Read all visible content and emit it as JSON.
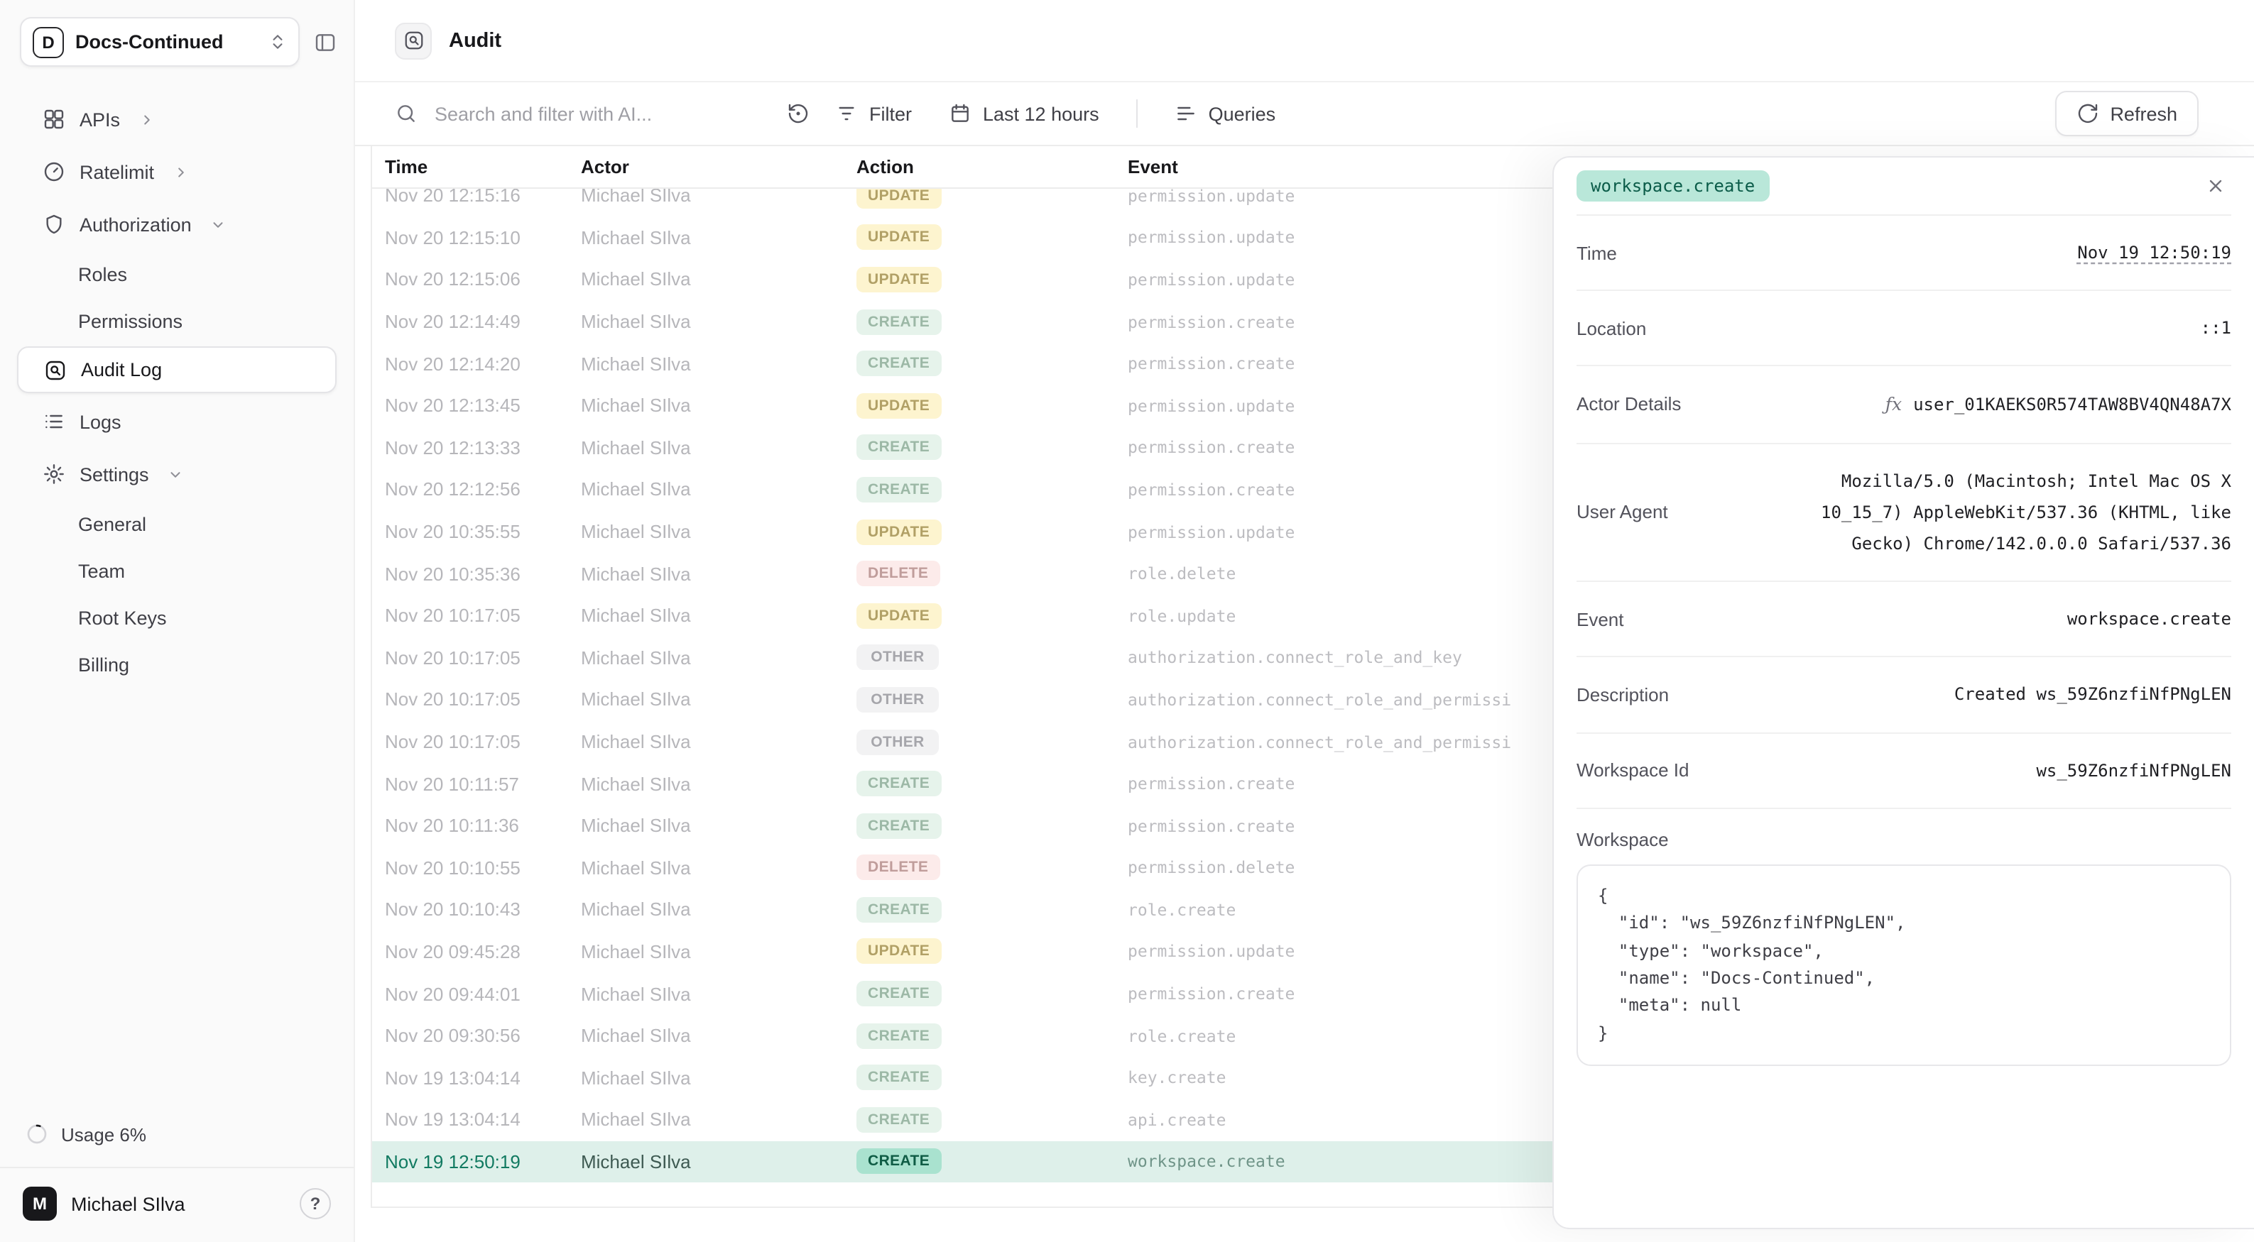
{
  "colors": {
    "accent_teal": "#117a61",
    "selected_row_bg": "#def0ea",
    "event_badge_bg": "#b9e7d9",
    "badge_update_bg": "#fdf4cf",
    "badge_create_bg": "#e6f3eb",
    "badge_delete_bg": "#fcebea",
    "badge_other_bg": "#f2f2f3",
    "sidebar_bg": "#fafafa"
  },
  "sidebar": {
    "workspace": {
      "name": "Docs-Continued",
      "logo_letter": "D"
    },
    "nav": [
      {
        "label": "APIs",
        "icon": "api",
        "chevron": "right"
      },
      {
        "label": "Ratelimit",
        "icon": "gauge",
        "chevron": "right"
      },
      {
        "label": "Authorization",
        "icon": "shield",
        "chevron": "down",
        "children": [
          "Roles",
          "Permissions"
        ]
      },
      {
        "label": "Audit Log",
        "icon": "audit",
        "active": true
      },
      {
        "label": "Logs",
        "icon": "logs"
      },
      {
        "label": "Settings",
        "icon": "gear",
        "chevron": "down",
        "children": [
          "General",
          "Team",
          "Root Keys",
          "Billing"
        ]
      }
    ],
    "usage_label": "Usage 6%",
    "user": {
      "name": "Michael SIlva",
      "avatar_letter": "M"
    },
    "help_label": "?"
  },
  "header": {
    "title": "Audit"
  },
  "toolbar": {
    "search_placeholder": "Search and filter with AI...",
    "filter_label": "Filter",
    "time_range_label": "Last 12 hours",
    "queries_label": "Queries",
    "refresh_label": "Refresh"
  },
  "table": {
    "columns": [
      "Time",
      "Actor",
      "Action",
      "Event"
    ],
    "rows": [
      {
        "time": "Nov 20 12:15:16",
        "actor": "Michael SIlva",
        "action": "UPDATE",
        "event": "permission.update"
      },
      {
        "time": "Nov 20 12:15:10",
        "actor": "Michael SIlva",
        "action": "UPDATE",
        "event": "permission.update"
      },
      {
        "time": "Nov 20 12:15:06",
        "actor": "Michael SIlva",
        "action": "UPDATE",
        "event": "permission.update"
      },
      {
        "time": "Nov 20 12:14:49",
        "actor": "Michael SIlva",
        "action": "CREATE",
        "event": "permission.create"
      },
      {
        "time": "Nov 20 12:14:20",
        "actor": "Michael SIlva",
        "action": "CREATE",
        "event": "permission.create"
      },
      {
        "time": "Nov 20 12:13:45",
        "actor": "Michael SIlva",
        "action": "UPDATE",
        "event": "permission.update"
      },
      {
        "time": "Nov 20 12:13:33",
        "actor": "Michael SIlva",
        "action": "CREATE",
        "event": "permission.create"
      },
      {
        "time": "Nov 20 12:12:56",
        "actor": "Michael SIlva",
        "action": "CREATE",
        "event": "permission.create"
      },
      {
        "time": "Nov 20 10:35:55",
        "actor": "Michael SIlva",
        "action": "UPDATE",
        "event": "permission.update"
      },
      {
        "time": "Nov 20 10:35:36",
        "actor": "Michael SIlva",
        "action": "DELETE",
        "event": "role.delete"
      },
      {
        "time": "Nov 20 10:17:05",
        "actor": "Michael SIlva",
        "action": "UPDATE",
        "event": "role.update"
      },
      {
        "time": "Nov 20 10:17:05",
        "actor": "Michael SIlva",
        "action": "OTHER",
        "event": "authorization.connect_role_and_key"
      },
      {
        "time": "Nov 20 10:17:05",
        "actor": "Michael SIlva",
        "action": "OTHER",
        "event": "authorization.connect_role_and_permissi"
      },
      {
        "time": "Nov 20 10:17:05",
        "actor": "Michael SIlva",
        "action": "OTHER",
        "event": "authorization.connect_role_and_permissi"
      },
      {
        "time": "Nov 20 10:11:57",
        "actor": "Michael SIlva",
        "action": "CREATE",
        "event": "permission.create"
      },
      {
        "time": "Nov 20 10:11:36",
        "actor": "Michael SIlva",
        "action": "CREATE",
        "event": "permission.create"
      },
      {
        "time": "Nov 20 10:10:55",
        "actor": "Michael SIlva",
        "action": "DELETE",
        "event": "permission.delete"
      },
      {
        "time": "Nov 20 10:10:43",
        "actor": "Michael SIlva",
        "action": "CREATE",
        "event": "role.create"
      },
      {
        "time": "Nov 20 09:45:28",
        "actor": "Michael SIlva",
        "action": "UPDATE",
        "event": "permission.update"
      },
      {
        "time": "Nov 20 09:44:01",
        "actor": "Michael SIlva",
        "action": "CREATE",
        "event": "permission.create"
      },
      {
        "time": "Nov 20 09:30:56",
        "actor": "Michael SIlva",
        "action": "CREATE",
        "event": "role.create"
      },
      {
        "time": "Nov 19 13:04:14",
        "actor": "Michael SIlva",
        "action": "CREATE",
        "event": "key.create"
      },
      {
        "time": "Nov 19 13:04:14",
        "actor": "Michael SIlva",
        "action": "CREATE",
        "event": "api.create"
      },
      {
        "time": "Nov 19 12:50:19",
        "actor": "Michael SIlva",
        "action": "CREATE",
        "event": "workspace.create",
        "selected": true
      }
    ]
  },
  "detail_panel": {
    "event_badge": "workspace.create",
    "fields": [
      {
        "label": "Time",
        "value": "Nov 19 12:50:19",
        "style": "underline"
      },
      {
        "label": "Location",
        "value": "::1"
      },
      {
        "label": "Actor Details",
        "value": "user_01KAEKS0R574TAW8BV4QN48A7X",
        "icon": "fx"
      },
      {
        "label": "User Agent",
        "value": "Mozilla/5.0 (Macintosh; Intel Mac OS X 10_15_7) AppleWebKit/537.36 (KHTML, like Gecko) Chrome/142.0.0.0 Safari/537.36"
      },
      {
        "label": "Event",
        "value": "workspace.create"
      },
      {
        "label": "Description",
        "value": "Created ws_59Z6nzfiNfPNgLEN"
      },
      {
        "label": "Workspace Id",
        "value": "ws_59Z6nzfiNfPNgLEN"
      }
    ],
    "workspace_section": {
      "label": "Workspace",
      "json_lines": [
        "{",
        "  \"id\": \"ws_59Z6nzfiNfPNgLEN\",",
        "  \"type\": \"workspace\",",
        "  \"name\": \"Docs-Continued\",",
        "  \"meta\": null",
        "}"
      ]
    }
  }
}
